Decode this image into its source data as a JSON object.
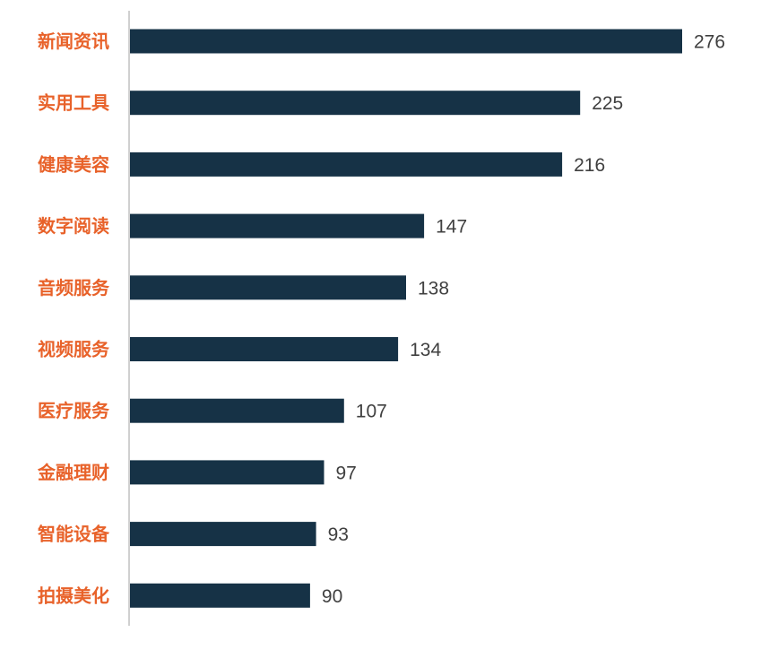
{
  "chart_data": {
    "type": "bar",
    "orientation": "horizontal",
    "categories": [
      "新闻资讯",
      "实用工具",
      "健康美容",
      "数字阅读",
      "音频服务",
      "视频服务",
      "医疗服务",
      "金融理财",
      "智能设备",
      "拍摄美化"
    ],
    "values": [
      276,
      225,
      216,
      147,
      138,
      134,
      107,
      97,
      93,
      90
    ],
    "title": "",
    "xlabel": "",
    "ylabel": "",
    "xlim": [
      0,
      276
    ],
    "grid": false,
    "legend": "none",
    "data_labels": [
      "276",
      "225",
      "216",
      "147",
      "138",
      "134",
      "107",
      "97",
      "93",
      "90"
    ]
  },
  "colors": {
    "bar": "#163246",
    "category_label": "#E8622A",
    "value_label": "#404040",
    "axis": "#D0D0D0"
  }
}
